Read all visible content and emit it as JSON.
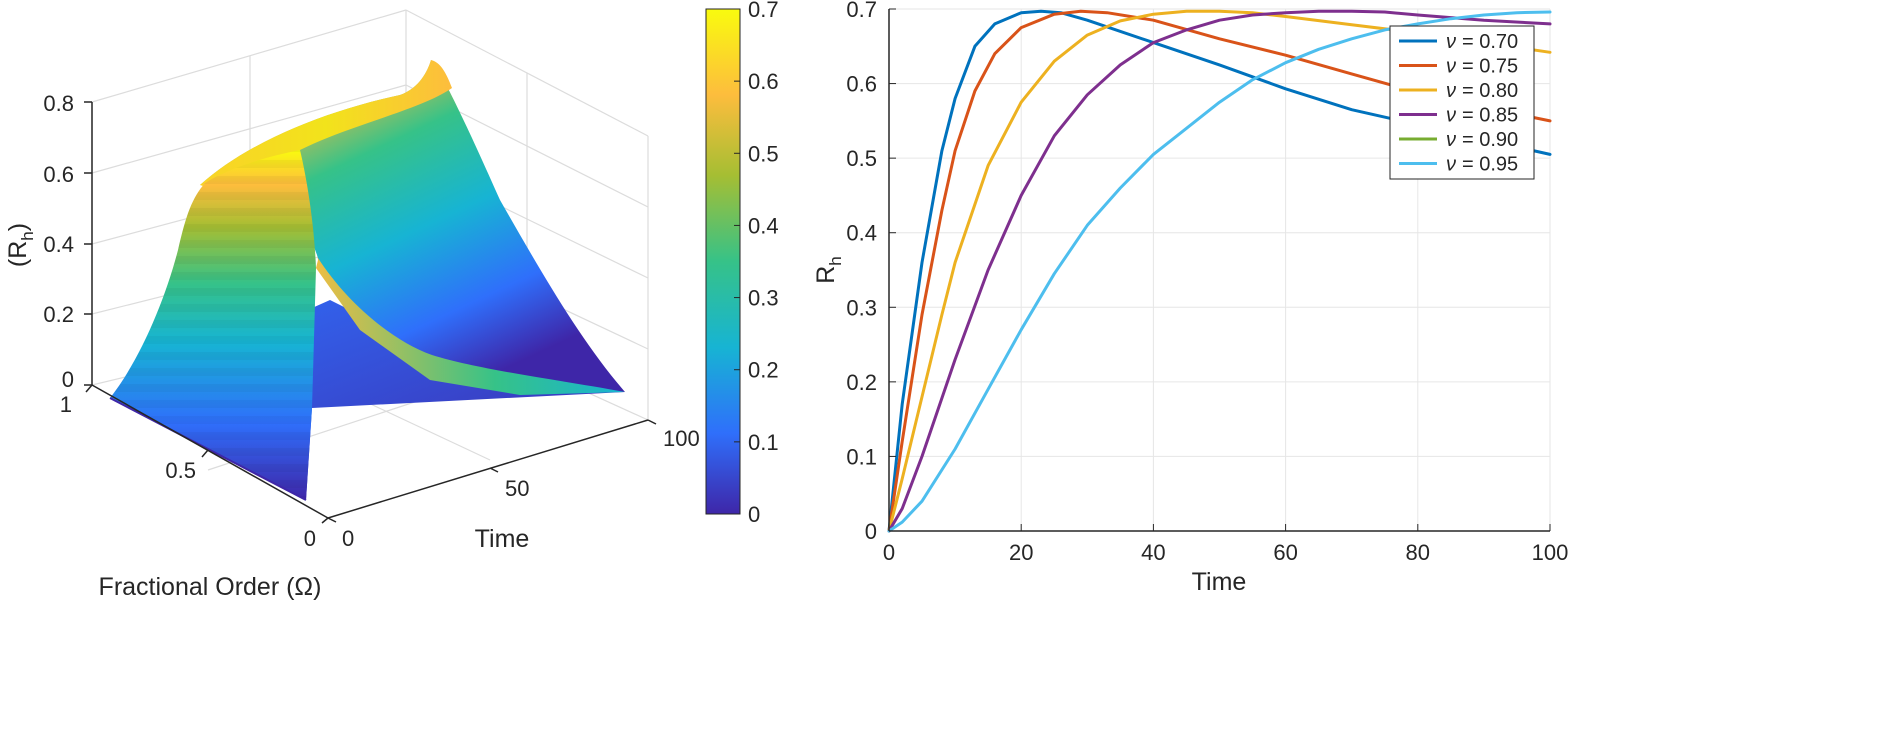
{
  "chart_data": [
    {
      "type": "surface",
      "xlabel": "Time",
      "ylabel": "Fractional Order (Ω)",
      "zlabel": "(R",
      "zlabel_sub": "h",
      "zlabel_close": ")",
      "x_range": [
        0,
        100
      ],
      "y_range": [
        0,
        1
      ],
      "z_range": [
        0,
        0.8
      ],
      "x_ticks": [
        "0",
        "50",
        "100"
      ],
      "y_ticks": [
        "0",
        "0.5",
        "1"
      ],
      "z_ticks": [
        "0",
        "0.2",
        "0.4",
        "0.6",
        "0.8"
      ],
      "colorbar": {
        "range": [
          0,
          0.7
        ],
        "ticks": [
          "0",
          "0.1",
          "0.2",
          "0.3",
          "0.4",
          "0.5",
          "0.6",
          "0.7"
        ]
      },
      "surface_peak": 0.7,
      "colors": [
        "#3e26a8",
        "#2f6ffb",
        "#17b4d3",
        "#36c288",
        "#a5be33",
        "#fdbd3d",
        "#f9fb0e"
      ]
    },
    {
      "type": "line",
      "xlabel": "Time",
      "ylabel": "R",
      "ylabel_sub": "h",
      "xlim": [
        0,
        100
      ],
      "ylim": [
        0,
        0.7
      ],
      "x_ticks": [
        "0",
        "20",
        "40",
        "60",
        "80",
        "100"
      ],
      "y_ticks": [
        "0",
        "0.1",
        "0.2",
        "0.3",
        "0.4",
        "0.5",
        "0.6",
        "0.7"
      ],
      "grid": true,
      "legend_position": "top-right",
      "series": [
        {
          "name": "ν = 0.70",
          "legend_text": "= 0.70",
          "color": "#0072bd",
          "nu": 0.7,
          "points": [
            [
              0,
              0
            ],
            [
              2,
              0.17
            ],
            [
              5,
              0.36
            ],
            [
              8,
              0.51
            ],
            [
              10,
              0.58
            ],
            [
              13,
              0.65
            ],
            [
              16,
              0.68
            ],
            [
              20,
              0.695
            ],
            [
              23,
              0.697
            ],
            [
              26,
              0.695
            ],
            [
              30,
              0.685
            ],
            [
              40,
              0.655
            ],
            [
              50,
              0.625
            ],
            [
              60,
              0.593
            ],
            [
              70,
              0.565
            ],
            [
              80,
              0.545
            ],
            [
              90,
              0.525
            ],
            [
              100,
              0.505
            ]
          ]
        },
        {
          "name": "ν = 0.75",
          "legend_text": "= 0.75",
          "color": "#d95319",
          "nu": 0.75,
          "points": [
            [
              0,
              0
            ],
            [
              2,
              0.12
            ],
            [
              5,
              0.29
            ],
            [
              8,
              0.43
            ],
            [
              10,
              0.51
            ],
            [
              13,
              0.59
            ],
            [
              16,
              0.64
            ],
            [
              20,
              0.675
            ],
            [
              25,
              0.693
            ],
            [
              29,
              0.697
            ],
            [
              33,
              0.695
            ],
            [
              40,
              0.685
            ],
            [
              50,
              0.66
            ],
            [
              60,
              0.638
            ],
            [
              70,
              0.613
            ],
            [
              80,
              0.588
            ],
            [
              90,
              0.568
            ],
            [
              100,
              0.55
            ]
          ]
        },
        {
          "name": "ν = 0.80",
          "legend_text": "= 0.80",
          "color": "#edb120",
          "nu": 0.8,
          "points": [
            [
              0,
              0
            ],
            [
              2,
              0.07
            ],
            [
              5,
              0.18
            ],
            [
              8,
              0.29
            ],
            [
              10,
              0.36
            ],
            [
              15,
              0.49
            ],
            [
              20,
              0.575
            ],
            [
              25,
              0.63
            ],
            [
              30,
              0.665
            ],
            [
              35,
              0.684
            ],
            [
              40,
              0.693
            ],
            [
              45,
              0.697
            ],
            [
              50,
              0.697
            ],
            [
              55,
              0.695
            ],
            [
              60,
              0.69
            ],
            [
              70,
              0.679
            ],
            [
              80,
              0.668
            ],
            [
              90,
              0.655
            ],
            [
              100,
              0.642
            ]
          ]
        },
        {
          "name": "ν = 0.85",
          "legend_text": "= 0.85",
          "color": "#7e2f8e",
          "nu": 0.85,
          "points": [
            [
              0,
              0
            ],
            [
              2,
              0.03
            ],
            [
              5,
              0.1
            ],
            [
              10,
              0.23
            ],
            [
              15,
              0.35
            ],
            [
              20,
              0.45
            ],
            [
              25,
              0.53
            ],
            [
              30,
              0.585
            ],
            [
              35,
              0.625
            ],
            [
              40,
              0.655
            ],
            [
              45,
              0.672
            ],
            [
              50,
              0.685
            ],
            [
              55,
              0.692
            ],
            [
              60,
              0.695
            ],
            [
              65,
              0.697
            ],
            [
              70,
              0.697
            ],
            [
              75,
              0.696
            ],
            [
              80,
              0.692
            ],
            [
              90,
              0.685
            ],
            [
              100,
              0.68
            ]
          ]
        },
        {
          "name": "ν = 0.90",
          "legend_text": "= 0.90",
          "color": "#77ac30",
          "nu": 0.9,
          "points": []
        },
        {
          "name": "ν = 0.95",
          "legend_text": "= 0.95",
          "color": "#4dbeee",
          "nu": 0.95,
          "points": [
            [
              0,
              0
            ],
            [
              2,
              0.012
            ],
            [
              5,
              0.04
            ],
            [
              10,
              0.11
            ],
            [
              15,
              0.19
            ],
            [
              20,
              0.27
            ],
            [
              25,
              0.345
            ],
            [
              30,
              0.41
            ],
            [
              35,
              0.46
            ],
            [
              40,
              0.505
            ],
            [
              45,
              0.54
            ],
            [
              50,
              0.575
            ],
            [
              55,
              0.605
            ],
            [
              60,
              0.628
            ],
            [
              65,
              0.646
            ],
            [
              70,
              0.66
            ],
            [
              75,
              0.672
            ],
            [
              80,
              0.68
            ],
            [
              85,
              0.687
            ],
            [
              90,
              0.692
            ],
            [
              95,
              0.695
            ],
            [
              100,
              0.696
            ]
          ]
        }
      ]
    }
  ]
}
